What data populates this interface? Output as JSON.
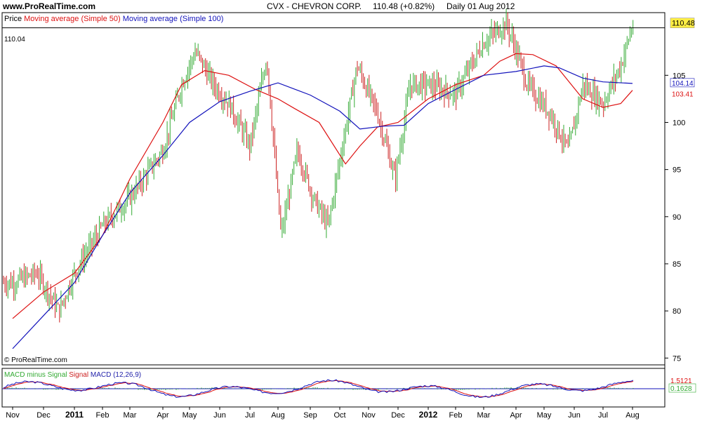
{
  "header": {
    "site": "www.ProRealTime.com",
    "ticker": "CVX - CHEVRON CORP.",
    "last": "110.48 (+0.82%)",
    "period": "Daily  01 Aug 2012"
  },
  "legend": {
    "price": "Price",
    "ma50": "Moving average (Simple 50)",
    "ma100": "Moving average (Simple 100)"
  },
  "hline_label": "110.04",
  "copyright": "© ProRealTime.com",
  "price_axis": {
    "ticks": [
      75,
      80,
      85,
      90,
      95,
      100,
      105
    ],
    "last_price": "110.48",
    "ma100_value": "104.14",
    "ma50_value": "103.41"
  },
  "macd_panel": {
    "legend": [
      {
        "text": "MACD minus Signal",
        "color": "#33aa33"
      },
      {
        "text": "Signal",
        "color": "#cc2222"
      },
      {
        "text": "MACD (12,26,9)",
        "color": "#2222aa"
      }
    ],
    "right_labels": [
      "1.5121",
      "0.1628"
    ]
  },
  "x_axis": [
    {
      "label": "Nov",
      "bold": false
    },
    {
      "label": "Dec",
      "bold": false
    },
    {
      "label": "2011",
      "bold": true
    },
    {
      "label": "Feb",
      "bold": false
    },
    {
      "label": "Mar",
      "bold": false
    },
    {
      "label": "Apr",
      "bold": false
    },
    {
      "label": "May",
      "bold": false
    },
    {
      "label": "Jun",
      "bold": false
    },
    {
      "label": "Jul",
      "bold": false
    },
    {
      "label": "Aug",
      "bold": false
    },
    {
      "label": "Sep",
      "bold": false
    },
    {
      "label": "Oct",
      "bold": false
    },
    {
      "label": "Nov",
      "bold": false
    },
    {
      "label": "Dec",
      "bold": false
    },
    {
      "label": "2012",
      "bold": true
    },
    {
      "label": "Feb",
      "bold": false
    },
    {
      "label": "Mar",
      "bold": false
    },
    {
      "label": "Apr",
      "bold": false
    },
    {
      "label": "May",
      "bold": false
    },
    {
      "label": "Jun",
      "bold": false
    },
    {
      "label": "Jul",
      "bold": false
    },
    {
      "label": "Aug",
      "bold": false
    }
  ],
  "colors": {
    "up": "#33aa33",
    "down": "#cc2222",
    "ma50": "#dd1111",
    "ma100": "#1111bb",
    "last_bg": "#ffee44"
  },
  "chart_data": {
    "type": "line",
    "series": [
      {
        "name": "Price",
        "points": [
          [
            0,
            83
          ],
          [
            0.8,
            84
          ],
          [
            1.5,
            80
          ],
          [
            2,
            84
          ],
          [
            3,
            89
          ],
          [
            4,
            92
          ],
          [
            5,
            97
          ],
          [
            5.7,
            104
          ],
          [
            6.2,
            107.5
          ],
          [
            6.8,
            104
          ],
          [
            7.3,
            102
          ],
          [
            8,
            97.5
          ],
          [
            8.6,
            107
          ],
          [
            9.1,
            88
          ],
          [
            9.6,
            97
          ],
          [
            10.1,
            92
          ],
          [
            10.6,
            89
          ],
          [
            11,
            96
          ],
          [
            11.6,
            106
          ],
          [
            12.3,
            101
          ],
          [
            12.9,
            94
          ],
          [
            13.4,
            104
          ],
          [
            14,
            104
          ],
          [
            15,
            103
          ],
          [
            16,
            108.5
          ],
          [
            16.7,
            110.5
          ],
          [
            17.4,
            104
          ],
          [
            18.2,
            101
          ],
          [
            18.8,
            97
          ],
          [
            19.3,
            104
          ],
          [
            20,
            102
          ],
          [
            20.6,
            106
          ],
          [
            21,
            110.3
          ]
        ]
      },
      {
        "name": "Moving average (Simple 50)",
        "points": [
          [
            0,
            79.2
          ],
          [
            1,
            82
          ],
          [
            2,
            84
          ],
          [
            3,
            88
          ],
          [
            4,
            94
          ],
          [
            5,
            100
          ],
          [
            5.7,
            104
          ],
          [
            6.5,
            105.5
          ],
          [
            7.3,
            105
          ],
          [
            8.2,
            103.5
          ],
          [
            9,
            102.5
          ],
          [
            9.5,
            101.5
          ],
          [
            10.3,
            100
          ],
          [
            11.2,
            95.6
          ],
          [
            11.7,
            97.5
          ],
          [
            12.3,
            99.5
          ],
          [
            13,
            100
          ],
          [
            14,
            102.5
          ],
          [
            15,
            104
          ],
          [
            16,
            105
          ],
          [
            16.5,
            106.5
          ],
          [
            17,
            107.3
          ],
          [
            17.6,
            107.2
          ],
          [
            18.4,
            106
          ],
          [
            19.3,
            102.5
          ],
          [
            20,
            101.6
          ],
          [
            20.6,
            102
          ],
          [
            21,
            103.41
          ]
        ]
      },
      {
        "name": "Moving average (Simple 100)",
        "points": [
          [
            0,
            76
          ],
          [
            1,
            79.5
          ],
          [
            2,
            83
          ],
          [
            3,
            88
          ],
          [
            4,
            92.5
          ],
          [
            5,
            96.5
          ],
          [
            6,
            100
          ],
          [
            7,
            102.2
          ],
          [
            8,
            103.3
          ],
          [
            9,
            104.2
          ],
          [
            10,
            102.9
          ],
          [
            11,
            101.2
          ],
          [
            11.7,
            99.3
          ],
          [
            12.5,
            99.6
          ],
          [
            13.2,
            99.7
          ],
          [
            14,
            102
          ],
          [
            15,
            103.5
          ],
          [
            16,
            105
          ],
          [
            17,
            105.4
          ],
          [
            18,
            106
          ],
          [
            18.5,
            105.8
          ],
          [
            19.3,
            104.7
          ],
          [
            20,
            104.3
          ],
          [
            21,
            104.14
          ]
        ]
      }
    ],
    "ylim": [
      74.5,
      111.5
    ],
    "grid": false,
    "hline": 110.04,
    "legend": "top-left"
  }
}
